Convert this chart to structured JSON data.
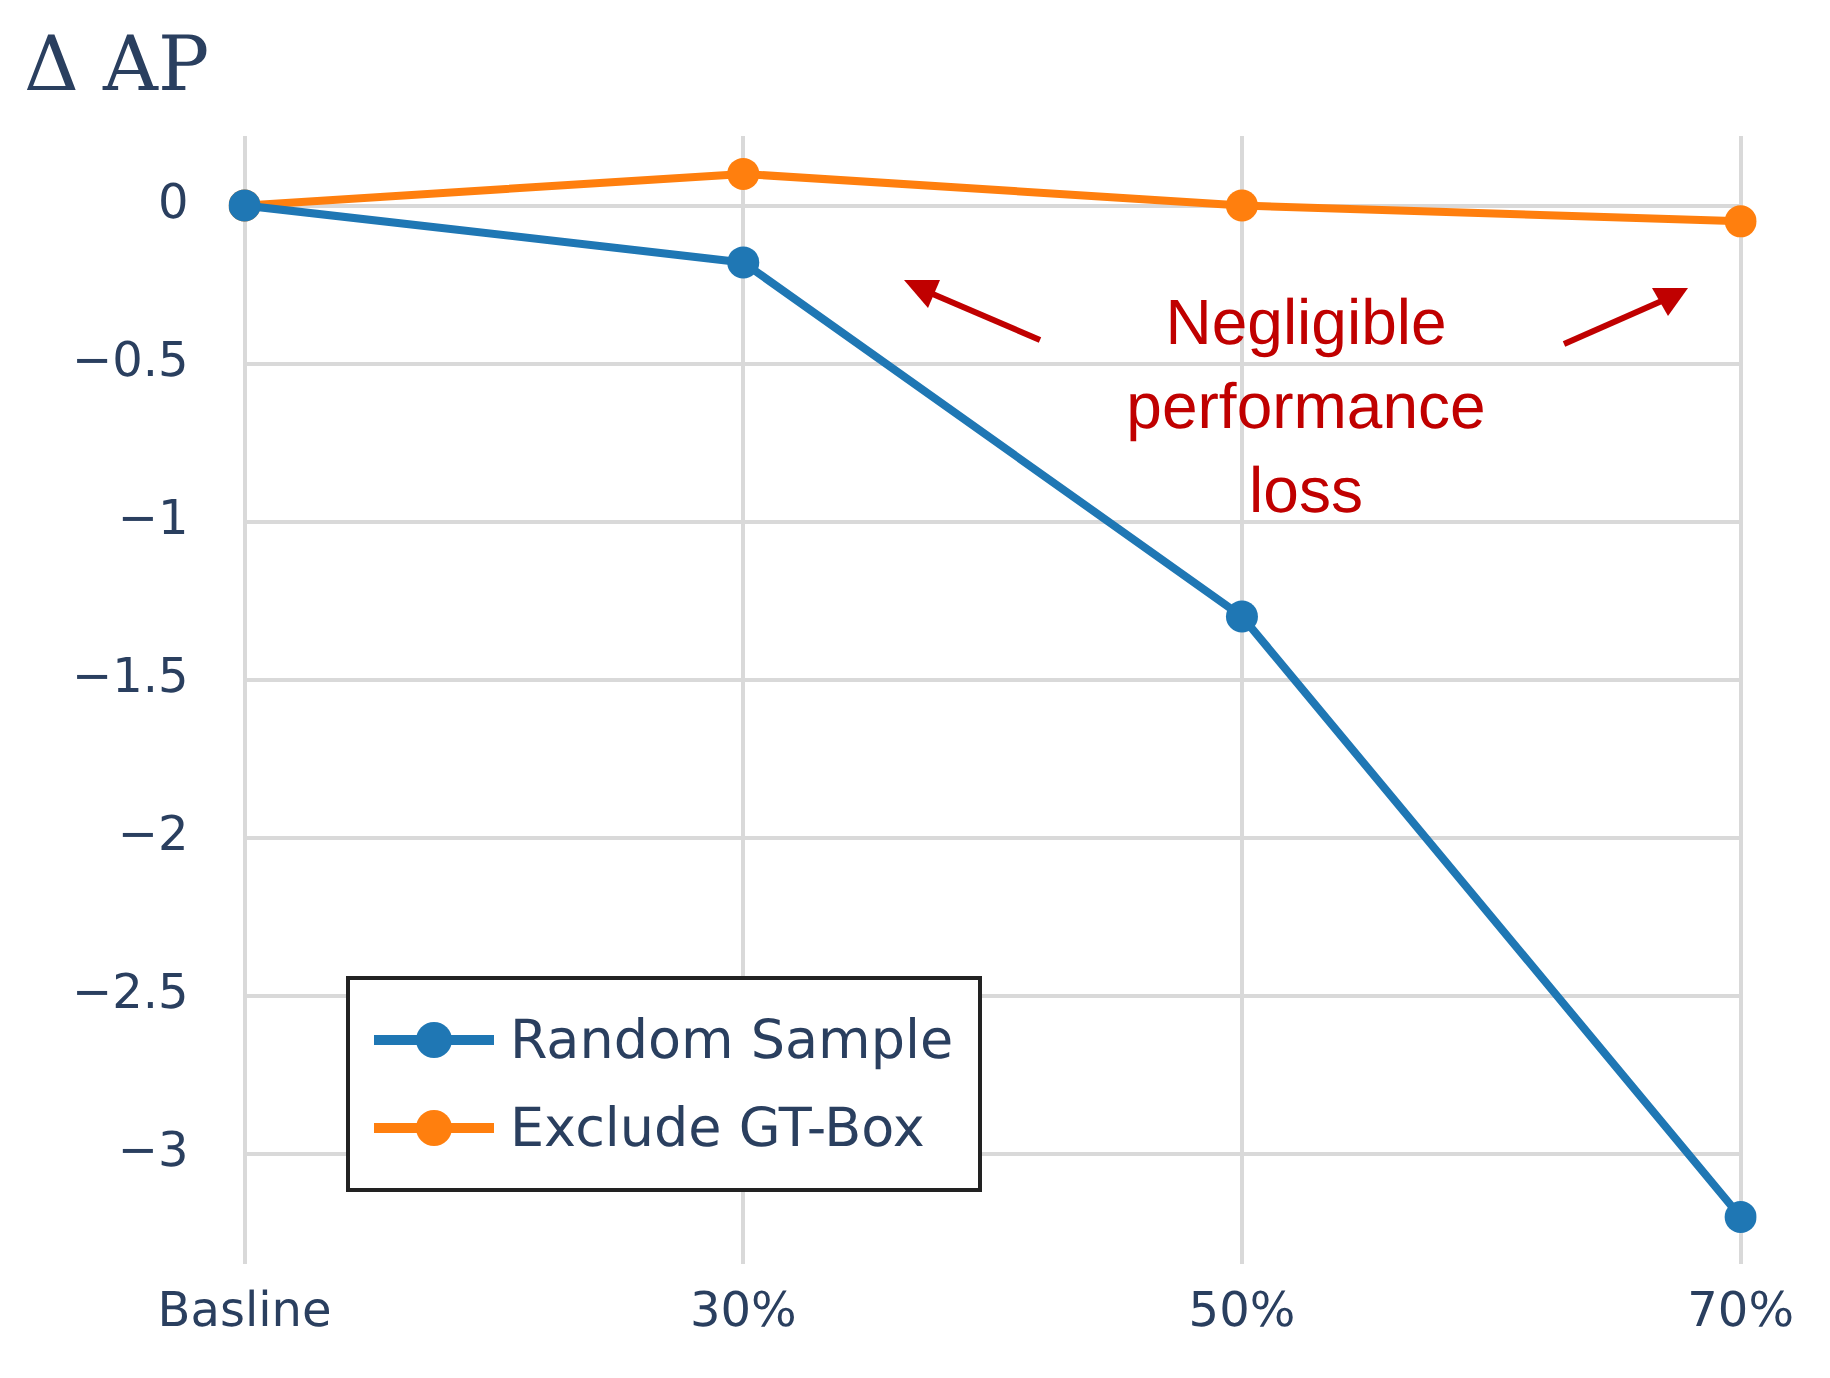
{
  "chart_data": {
    "type": "line",
    "title": "Δ AP",
    "categories": [
      "Basline",
      "30%",
      "50%",
      "70%"
    ],
    "series": [
      {
        "name": "Random Sample",
        "color": "#1f77b4",
        "values": [
          0,
          -0.18,
          -1.3,
          -3.2
        ]
      },
      {
        "name": "Exclude GT-Box",
        "color": "#ff7f0e",
        "values": [
          0,
          0.1,
          0,
          -0.05
        ]
      }
    ],
    "ylim": [
      -3.35,
      0.22
    ],
    "yticks": [
      {
        "value": 0,
        "label": "0"
      },
      {
        "value": -0.5,
        "label": "−0.5"
      },
      {
        "value": -1,
        "label": "−1"
      },
      {
        "value": -1.5,
        "label": "−1.5"
      },
      {
        "value": -2,
        "label": "−2"
      },
      {
        "value": -2.5,
        "label": "−2.5"
      },
      {
        "value": -3,
        "label": "−3"
      }
    ],
    "grid": true,
    "legend": "bottom left",
    "marker": "circle",
    "line_style": "solid",
    "annotations": [
      "Negligible performance loss"
    ]
  }
}
